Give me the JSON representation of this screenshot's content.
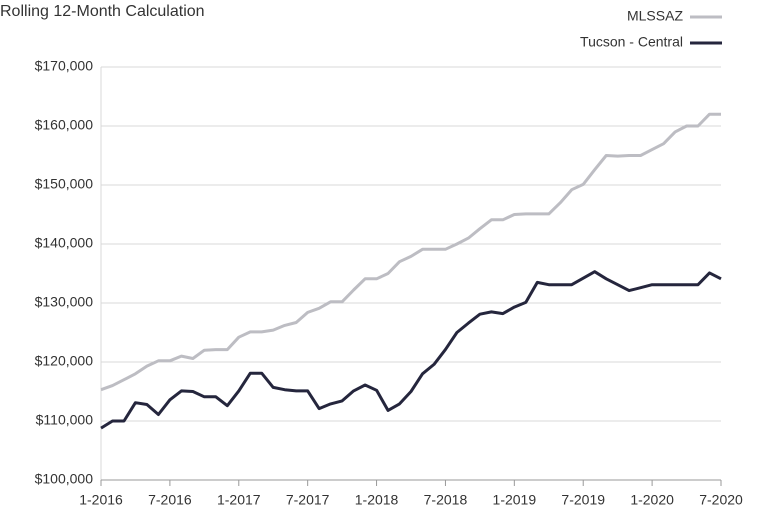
{
  "chart_data": {
    "type": "line",
    "title": "Rolling 12-Month Calculation",
    "categories": [
      "1-2016",
      null,
      null,
      null,
      null,
      null,
      "7-2016",
      null,
      null,
      null,
      null,
      null,
      "1-2017",
      null,
      null,
      null,
      null,
      null,
      "7-2017",
      null,
      null,
      null,
      null,
      null,
      "1-2018",
      null,
      null,
      null,
      null,
      null,
      "7-2018",
      null,
      null,
      null,
      null,
      null,
      "1-2019",
      null,
      null,
      null,
      null,
      null,
      "7-2019",
      null,
      null,
      null,
      null,
      null,
      "1-2020",
      null,
      null,
      null,
      null,
      null,
      "7-2020"
    ],
    "series": [
      {
        "name": "MLSSAZ",
        "color": "#bdbdc3",
        "values": [
          115300,
          116000,
          117000,
          118000,
          119300,
          120200,
          120200,
          121000,
          120600,
          122000,
          122100,
          122100,
          124200,
          125100,
          125100,
          125400,
          126200,
          126700,
          128400,
          129100,
          130200,
          130200,
          132200,
          134100,
          134100,
          135000,
          137000,
          137900,
          139100,
          139100,
          139100,
          140000,
          141000,
          142600,
          144100,
          144100,
          145000,
          145100,
          145100,
          145100,
          147000,
          149200,
          150100,
          152600,
          155000,
          154900,
          155000,
          155000,
          156000,
          157000,
          159000,
          160000,
          160000,
          162000,
          162000
        ]
      },
      {
        "name": "Tucson - Central",
        "color": "#25263d",
        "values": [
          108800,
          110000,
          110000,
          113100,
          112800,
          111100,
          113600,
          115100,
          115000,
          114100,
          114100,
          112600,
          115100,
          118100,
          118100,
          115700,
          115300,
          115100,
          115100,
          112100,
          112900,
          113400,
          115100,
          116100,
          115200,
          111800,
          112900,
          115000,
          118000,
          119600,
          122100,
          125000,
          126600,
          128100,
          128500,
          128200,
          129300,
          130100,
          133500,
          133100,
          133100,
          133100,
          134200,
          135300,
          134100,
          133100,
          132100,
          132600,
          133100,
          133100,
          133100,
          133100,
          133100,
          135100,
          134100
        ]
      }
    ],
    "ylim": [
      100000,
      170000
    ],
    "yticks": [
      {
        "value": 100000,
        "label": "$100,000"
      },
      {
        "value": 110000,
        "label": "$110,000"
      },
      {
        "value": 120000,
        "label": "$120,000"
      },
      {
        "value": 130000,
        "label": "$130,000"
      },
      {
        "value": 140000,
        "label": "$140,000"
      },
      {
        "value": 150000,
        "label": "$150,000"
      },
      {
        "value": 160000,
        "label": "$160,000"
      },
      {
        "value": 170000,
        "label": "$170,000"
      }
    ],
    "grid": true,
    "legend": "top-right"
  }
}
